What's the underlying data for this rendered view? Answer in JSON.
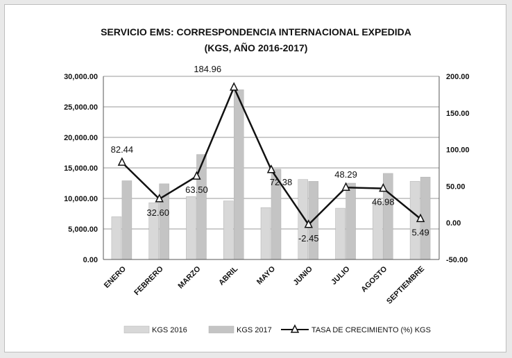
{
  "chart_data": {
    "type": "bar",
    "title": "SERVICIO EMS: CORRESPONDENCIA INTERNACIONAL EXPEDIDA",
    "subtitle": "(KGS, AÑO 2016-2017)",
    "categories": [
      "ENERO",
      "FEBRERO",
      "MARZO",
      "ABRIL",
      "MAYO",
      "JUNIO",
      "JULIO",
      "AGOSTO",
      "SEPTIEMBRE"
    ],
    "series": [
      {
        "name": "KGS 2016",
        "type": "bar",
        "axis": "left",
        "color": "#d8d8d8",
        "values": [
          7000,
          9300,
          10300,
          9600,
          8500,
          13100,
          8400,
          9500,
          12800
        ]
      },
      {
        "name": "KGS 2017",
        "type": "bar",
        "axis": "left",
        "color": "#c4c4c4",
        "values": [
          12900,
          12400,
          17200,
          27800,
          14800,
          12800,
          12500,
          14100,
          13500
        ]
      },
      {
        "name": "TASA DE CRECIMIENTO (%) KGS",
        "type": "line",
        "axis": "right",
        "color": "#111111",
        "values": [
          82.44,
          32.6,
          63.5,
          184.96,
          72.38,
          -2.45,
          48.29,
          46.98,
          5.49
        ],
        "labels": [
          "82.44",
          "32.60",
          "63.50",
          "184.96",
          "72.38",
          "-2.45",
          "48.29",
          "46.98",
          "5.49"
        ]
      }
    ],
    "y_left": {
      "ylim": [
        0,
        30000
      ],
      "ticks": [
        "0.00",
        "5,000.00",
        "10,000.00",
        "15,000.00",
        "20,000.00",
        "25,000.00",
        "30,000.00"
      ],
      "tick_values": [
        0,
        5000,
        10000,
        15000,
        20000,
        25000,
        30000
      ]
    },
    "y_right": {
      "ylim": [
        -50,
        200
      ],
      "ticks": [
        "-50.00",
        "0.00",
        "50.00",
        "100.00",
        "150.00",
        "200.00"
      ],
      "tick_values": [
        -50,
        0,
        50,
        100,
        150,
        200
      ]
    },
    "grid": true,
    "legend_position": "bottom"
  }
}
